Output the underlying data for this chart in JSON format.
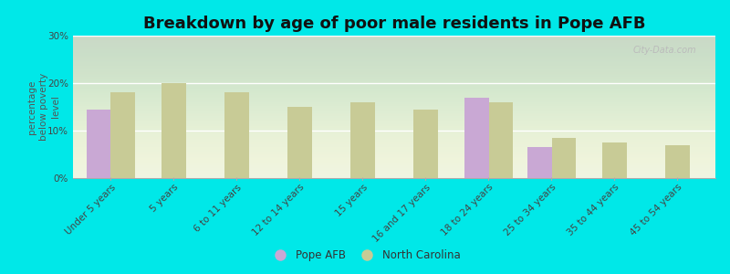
{
  "title": "Breakdown by age of poor male residents in Pope AFB",
  "ylabel": "percentage\nbelow poverty\nlevel",
  "categories": [
    "Under 5 years",
    "5 years",
    "6 to 11 years",
    "12 to 14 years",
    "15 years",
    "16 and 17 years",
    "18 to 24 years",
    "25 to 34 years",
    "35 to 44 years",
    "45 to 54 years"
  ],
  "pope_afb": [
    14.5,
    null,
    null,
    null,
    null,
    null,
    17.0,
    6.5,
    null,
    null
  ],
  "north_carolina": [
    18.0,
    20.0,
    18.0,
    15.0,
    16.0,
    14.5,
    16.0,
    8.5,
    7.5,
    7.0
  ],
  "pope_color": "#c9a8d4",
  "nc_color": "#c8cb96",
  "background_color": "#00e8e8",
  "plot_bg_color": "#eef3e2",
  "ylim": [
    0,
    30
  ],
  "yticks": [
    0,
    10,
    20,
    30
  ],
  "ytick_labels": [
    "0%",
    "10%",
    "20%",
    "30%"
  ],
  "bar_width": 0.38,
  "legend_pope": "Pope AFB",
  "legend_nc": "North Carolina",
  "title_fontsize": 13,
  "ylabel_fontsize": 7.5,
  "tick_fontsize": 7.5,
  "legend_fontsize": 8.5,
  "watermark": "City-Data.com"
}
